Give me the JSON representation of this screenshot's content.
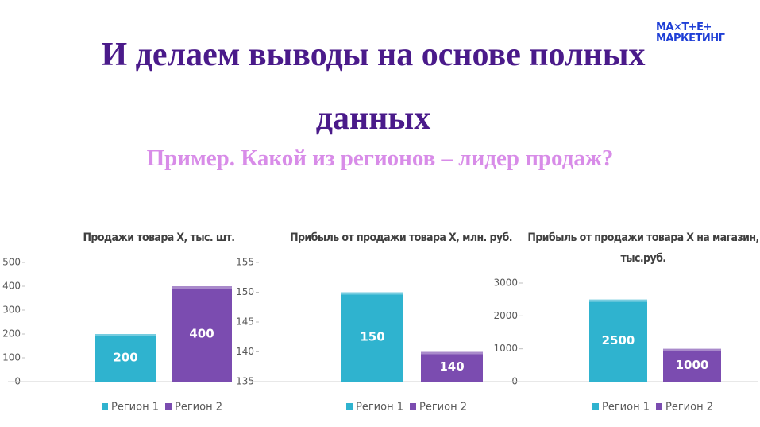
{
  "title": "И делаем выводы на основе полных данных",
  "subtitle": "Пример. Какой из регионов – лидер продаж?",
  "logo": {
    "line1": "МА×Т+Е+",
    "line2": "МАРКЕТИНГ"
  },
  "chart_data": [
    {
      "type": "bar",
      "title": "Продажи товара Х, тыс. шт.",
      "categories": [
        null
      ],
      "series": [
        {
          "name": "Регион 1",
          "color": "#2fb3cf",
          "values": [
            200
          ]
        },
        {
          "name": "Регион 2",
          "color": "#7b4cb0",
          "values": [
            400
          ]
        }
      ],
      "ylim": [
        0,
        500
      ],
      "yticks": [
        0,
        100,
        200,
        300,
        400,
        500
      ],
      "legend": "bottom"
    },
    {
      "type": "bar",
      "title": "Прибыль от продажи товара Х, млн. руб.",
      "categories": [
        null
      ],
      "series": [
        {
          "name": "Регион 1",
          "color": "#2fb3cf",
          "values": [
            150
          ]
        },
        {
          "name": "Регион 2",
          "color": "#7b4cb0",
          "values": [
            140
          ]
        }
      ],
      "ylim": [
        135,
        155
      ],
      "yticks": [
        135,
        140,
        145,
        150,
        155
      ],
      "legend": "bottom"
    },
    {
      "type": "bar",
      "title": "Прибыль от продажи товара Х на магазин, тыс.руб.",
      "categories": [
        null
      ],
      "series": [
        {
          "name": "Регион 1",
          "color": "#2fb3cf",
          "values": [
            2500
          ]
        },
        {
          "name": "Регион 2",
          "color": "#7b4cb0",
          "values": [
            1000
          ]
        }
      ],
      "ylim": [
        0,
        3000
      ],
      "yticks": [
        0,
        1000,
        2000,
        3000
      ],
      "legend": "bottom"
    }
  ]
}
